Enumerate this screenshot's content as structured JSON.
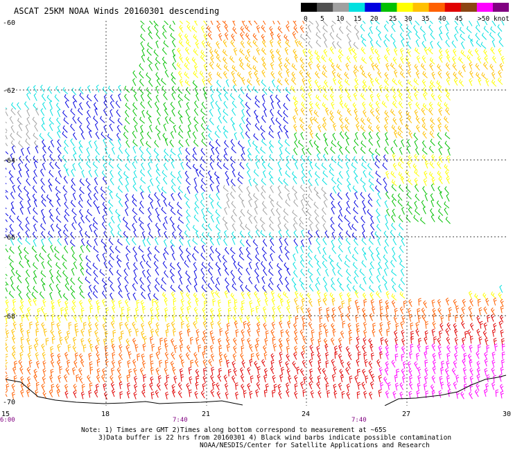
{
  "title": "ASCAT 25KM NOAA Winds 20160301 descending",
  "legend": {
    "labels": [
      "0",
      "5",
      "10",
      "15",
      "20",
      "25",
      "30",
      "35",
      "40",
      "45",
      ">50 knots"
    ],
    "colors": [
      "#000000",
      "#505050",
      "#a0a0a0",
      "#00e0e0",
      "#0000e0",
      "#00c000",
      "#ffff00",
      "#ffc000",
      "#ff6000",
      "#e00000",
      "#8b4513",
      "#ff00ff",
      "#800080"
    ]
  },
  "map": {
    "lat_labels": [
      "-60",
      "-62",
      "-64",
      "-66",
      "-68",
      "-70"
    ],
    "lon_labels": [
      "15",
      "18",
      "21",
      "24",
      "27",
      "30"
    ],
    "times": [
      "6:00",
      "7:40",
      "7:40"
    ],
    "grid_color": "#000000"
  },
  "notes": {
    "line1": "Note: 1) Times are GMT 2)Times along bottom correspond to measurement at ~65S",
    "line2": "3)Data buffer is 22 hrs from 20160301 4) Black wind barbs indicate possible contamination",
    "line3": "NOAA/NESDIS/Center for Satellite Applications and Research"
  }
}
